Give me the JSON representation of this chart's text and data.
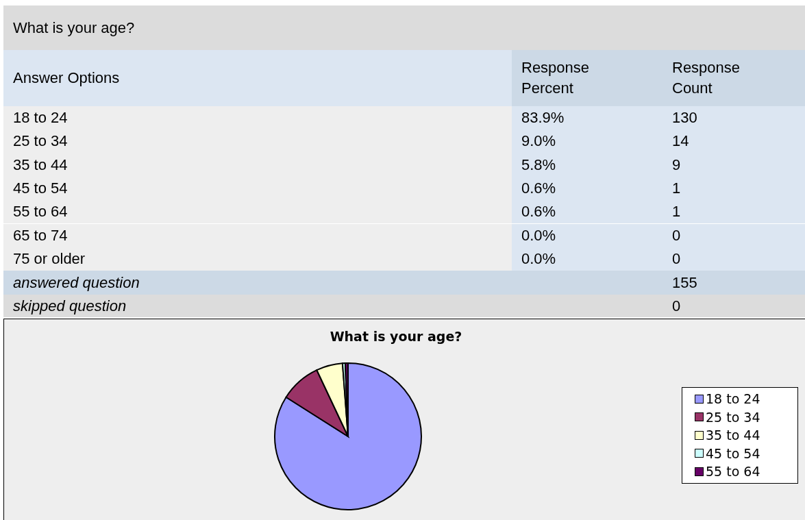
{
  "chart_data": {
    "type": "pie",
    "title": "What is your age?",
    "categories": [
      "18 to 24",
      "25 to 34",
      "35 to 44",
      "45 to 54",
      "55 to 64",
      "65 to 74",
      "75 or older"
    ],
    "values": [
      83.9,
      9.0,
      5.8,
      0.6,
      0.6,
      0.0,
      0.0
    ],
    "colors": [
      "#9999ff",
      "#993366",
      "#ffffcc",
      "#ccffff",
      "#660066",
      "#ff8080",
      "#0066cc"
    ],
    "legend": "right",
    "annotations": [
      "What is your age?",
      "Answer Options",
      "Response Percent",
      "Response Count",
      "83.9%",
      "9.0%",
      "5.8%",
      "0.6%",
      "0.6%",
      "0.0%",
      "0.0%",
      "130",
      "14",
      "9",
      "1",
      "1",
      "0",
      "0",
      "answered question",
      "155",
      "skipped question",
      "0"
    ]
  }
}
